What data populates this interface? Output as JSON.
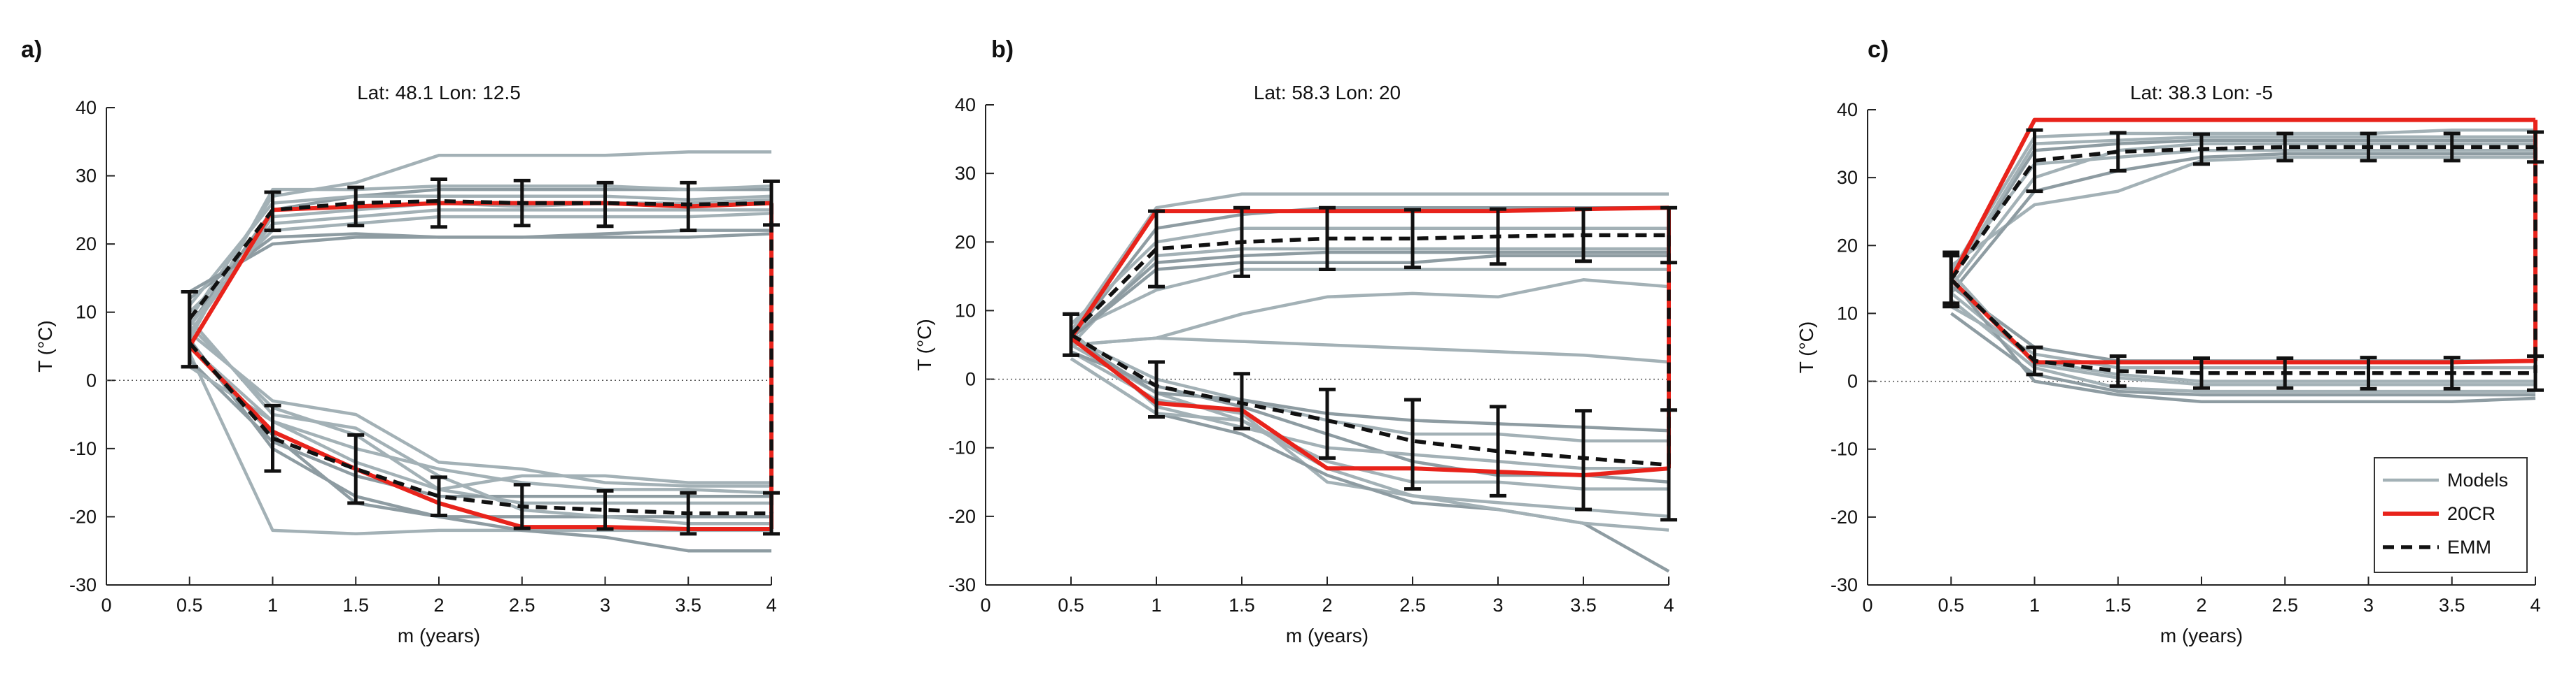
{
  "figure": {
    "description_free": true
  },
  "legend": {
    "entries": [
      {
        "label": "Models",
        "color": "#a3b1b6",
        "style": "solid"
      },
      {
        "label": "20CR",
        "color": "#e8231b",
        "style": "solid"
      },
      {
        "label": "EMM",
        "color": "#111111",
        "style": "dashed"
      }
    ]
  },
  "colors": {
    "models": "#a3b1b6",
    "models_dark": "#8e9ca2",
    "reanalysis": "#e8231b",
    "emm": "#111111"
  },
  "chart_data": [
    {
      "type": "line",
      "panel": "a)",
      "title": "Lat: 48.1  Lon: 12.5",
      "xlabel": "m (years)",
      "ylabel": "T (°C)",
      "x": [
        0.5,
        1,
        1.5,
        2,
        2.5,
        3,
        3.5,
        4
      ],
      "xticks": [
        "0",
        "0.5",
        "1",
        "1.5",
        "2",
        "2.5",
        "3",
        "3.5",
        "4"
      ],
      "yticks": [
        "-30",
        "-20",
        "-10",
        "0",
        "10",
        "20",
        "30",
        "40"
      ],
      "xlim": [
        0,
        4
      ],
      "ylim": [
        -30,
        40
      ],
      "zero_line": true,
      "series": [
        {
          "name": "20CR max",
          "values": [
            5,
            25,
            25.5,
            26,
            26,
            26,
            25.5,
            26
          ]
        },
        {
          "name": "20CR min",
          "values": [
            5,
            -7.5,
            -13,
            -18,
            -21.5,
            -21.5,
            -21.8,
            -21.8
          ]
        },
        {
          "name": "EMM max",
          "values": [
            9,
            25,
            26,
            26.3,
            26,
            26,
            25.8,
            26
          ]
        },
        {
          "name": "EMM min",
          "values": [
            5.5,
            -8.5,
            -13,
            -17,
            -18.5,
            -19,
            -19.5,
            -19.5
          ]
        }
      ],
      "error_bars": {
        "max": {
          "means": [
            7.5,
            24.8,
            25.5,
            26,
            26,
            25.8,
            25.5,
            26
          ],
          "halfwidths": [
            5.5,
            2.8,
            2.8,
            3.5,
            3.3,
            3.2,
            3.5,
            3.2
          ]
        },
        "min": {
          "means": [
            7.5,
            -8.5,
            -13,
            -17,
            -18.5,
            -19,
            -19.5,
            -19.5
          ],
          "halfwidths": [
            5.5,
            4.8,
            5,
            2.8,
            3.2,
            2.8,
            3,
            3
          ]
        }
      },
      "models_max": [
        [
          9,
          27,
          29,
          33,
          33,
          33,
          33.5,
          33.5
        ],
        [
          8,
          25,
          27,
          28,
          28,
          28,
          28,
          28
        ],
        [
          7,
          24,
          25,
          26,
          25.5,
          26,
          26,
          26.5
        ],
        [
          10,
          22,
          23,
          24,
          24,
          24,
          24,
          24.5
        ],
        [
          12,
          21,
          21.5,
          21,
          21,
          21.5,
          22,
          22
        ],
        [
          6,
          28,
          28,
          28.5,
          28.5,
          28.5,
          28,
          28.5
        ],
        [
          11,
          26,
          27,
          27,
          27,
          27,
          26.5,
          27
        ],
        [
          13,
          20,
          21,
          21,
          21,
          21,
          21,
          21.5
        ],
        [
          8,
          23,
          24,
          25,
          25,
          25,
          25,
          25
        ]
      ],
      "models_min": [
        [
          4,
          -22,
          -22.5,
          -22,
          -22,
          -22,
          -22,
          -22
        ],
        [
          6,
          -10,
          -17,
          -20,
          -22,
          -23,
          -25,
          -25
        ],
        [
          5,
          -6,
          -10,
          -13,
          -15,
          -16,
          -16,
          -16.5
        ],
        [
          8,
          -4,
          -8,
          -16,
          -18,
          -18,
          -18,
          -18
        ],
        [
          3,
          -9,
          -14,
          -17,
          -17,
          -17,
          -17,
          -17
        ],
        [
          2,
          -6,
          -12,
          -16,
          -14,
          -14,
          -15,
          -15
        ],
        [
          7,
          -3,
          -5,
          -12,
          -13,
          -15,
          -15.5,
          -15.5
        ],
        [
          5,
          -8,
          -18,
          -20,
          -20,
          -20,
          -20,
          -20
        ],
        [
          9,
          -5,
          -7,
          -14,
          -19,
          -20,
          -21,
          -21
        ]
      ]
    },
    {
      "type": "line",
      "panel": "b)",
      "title": "Lat: 58.3  Lon: 20",
      "xlabel": "m (years)",
      "ylabel": "T (°C)",
      "x": [
        0.5,
        1,
        1.5,
        2,
        2.5,
        3,
        3.5,
        4
      ],
      "xticks": [
        "0",
        "0.5",
        "1",
        "1.5",
        "2",
        "2.5",
        "3",
        "3.5",
        "4"
      ],
      "yticks": [
        "-30",
        "-20",
        "-10",
        "0",
        "10",
        "20",
        "30",
        "40"
      ],
      "xlim": [
        0,
        4
      ],
      "ylim": [
        -30,
        40
      ],
      "zero_line": true,
      "series": [
        {
          "name": "20CR max",
          "values": [
            6,
            24.5,
            24.5,
            24.5,
            24.5,
            24.5,
            24.8,
            25
          ]
        },
        {
          "name": "20CR min",
          "values": [
            6,
            -3.5,
            -4.5,
            -13,
            -13,
            -13.5,
            -14,
            -13
          ]
        },
        {
          "name": "EMM max",
          "values": [
            6.5,
            19,
            20,
            20.5,
            20.5,
            20.8,
            21,
            21
          ]
        },
        {
          "name": "EMM min",
          "values": [
            6.5,
            -1,
            -3.5,
            -6,
            -9,
            -10.5,
            -11.5,
            -12.5
          ]
        }
      ],
      "error_bars": {
        "max": {
          "means": [
            6.5,
            19,
            20,
            20.5,
            20.5,
            20.8,
            21,
            21
          ],
          "halfwidths": [
            3,
            5.5,
            5,
            4.5,
            4.2,
            4,
            3.8,
            4
          ]
        },
        "min": {
          "means": [
            6.5,
            -1.5,
            -3.2,
            -6.5,
            -9.5,
            -10.5,
            -11.8,
            -12.5
          ],
          "halfwidths": [
            3,
            4,
            4,
            5,
            6.5,
            6.5,
            7.2,
            8
          ]
        }
      },
      "models_max": [
        [
          7,
          25,
          27,
          27,
          27,
          27,
          27,
          27
        ],
        [
          6,
          22,
          24,
          25,
          25,
          25,
          25,
          25
        ],
        [
          8,
          20,
          22,
          22,
          22,
          22,
          22,
          22
        ],
        [
          5,
          18,
          19,
          19,
          19,
          19,
          19,
          19
        ],
        [
          6,
          17,
          18,
          18.5,
          18.5,
          18.5,
          18.5,
          18.5
        ],
        [
          7,
          13,
          16,
          16,
          16,
          16,
          16,
          16
        ],
        [
          5,
          6,
          9.5,
          12,
          12.5,
          12,
          14.5,
          13.5
        ],
        [
          6,
          16,
          17,
          17,
          17,
          18,
          18,
          18
        ]
      ],
      "models_min": [
        [
          5,
          6,
          5.5,
          5,
          4.5,
          4,
          3.5,
          2.5
        ],
        [
          4,
          -3,
          -5,
          -15,
          -17,
          -18,
          -19,
          -20
        ],
        [
          3,
          -5,
          -8,
          -14,
          -18,
          -19,
          -21,
          -28
        ],
        [
          6,
          0,
          -3,
          -6,
          -8,
          -8,
          -9,
          -9
        ],
        [
          5,
          -2,
          -6,
          -12,
          -15,
          -15,
          -16,
          -16
        ],
        [
          4,
          -1,
          -4,
          -8,
          -12,
          -14,
          -14,
          -15
        ],
        [
          7,
          -4,
          -7,
          -10,
          -11,
          -12,
          -13,
          -13
        ],
        [
          3,
          -5,
          -6,
          -13,
          -17,
          -19,
          -21,
          -22
        ],
        [
          6,
          -2,
          -3,
          -5,
          -6,
          -6.5,
          -7,
          -7.5
        ]
      ]
    },
    {
      "type": "line",
      "panel": "c)",
      "title": "Lat: 38.3  Lon: -5",
      "xlabel": "m (years)",
      "ylabel": "T (°C)",
      "x": [
        0.5,
        1,
        1.5,
        2,
        2.5,
        3,
        3.5,
        4
      ],
      "xticks": [
        "0",
        "0.5",
        "1",
        "1.5",
        "2",
        "2.5",
        "3",
        "3.5",
        "4"
      ],
      "yticks": [
        "-30",
        "-20",
        "-10",
        "0",
        "10",
        "20",
        "30",
        "40"
      ],
      "xlim": [
        0,
        4
      ],
      "ylim": [
        -30,
        40
      ],
      "zero_line": true,
      "series": [
        {
          "name": "20CR max",
          "values": [
            15,
            38.5,
            38.5,
            38.5,
            38.5,
            38.5,
            38.5,
            38.5
          ]
        },
        {
          "name": "20CR min",
          "values": [
            15,
            2.8,
            2.8,
            2.8,
            2.8,
            2.8,
            2.8,
            3
          ]
        },
        {
          "name": "EMM max",
          "values": [
            15,
            32.5,
            33.8,
            34.2,
            34.5,
            34.5,
            34.5,
            34.5
          ]
        },
        {
          "name": "EMM min",
          "values": [
            15,
            3,
            1.5,
            1.2,
            1.2,
            1.2,
            1.2,
            1.2
          ]
        }
      ],
      "error_bars": {
        "max": {
          "means": [
            15,
            32.5,
            33.8,
            34.2,
            34.5,
            34.5,
            34.5,
            34.5
          ],
          "halfwidths": [
            3.5,
            4.5,
            2.8,
            2.2,
            2,
            2,
            2,
            2.2
          ]
        },
        "min": {
          "means": [
            15,
            3,
            1.5,
            1.2,
            1.2,
            1.2,
            1.2,
            1.2
          ],
          "halfwidths": [
            4,
            2,
            2.2,
            2.2,
            2.2,
            2.3,
            2.3,
            2.5
          ]
        }
      },
      "models_max": [
        [
          16,
          36,
          36.5,
          36.5,
          36.5,
          36.5,
          37,
          37
        ],
        [
          15,
          34,
          35,
          35.5,
          35.5,
          35.5,
          35.5,
          35.5
        ],
        [
          14,
          30,
          34,
          35,
          35,
          35,
          35,
          35
        ],
        [
          17,
          26,
          28,
          32.5,
          33,
          33,
          33,
          33
        ],
        [
          13,
          28,
          31,
          33,
          33.5,
          33.5,
          33.5,
          33.5
        ],
        [
          16,
          32,
          33,
          34,
          34,
          34,
          34,
          34
        ],
        [
          15,
          35,
          35.5,
          36,
          36,
          36,
          36,
          36
        ]
      ],
      "models_min": [
        [
          14,
          5,
          3,
          3,
          3,
          3,
          3,
          3
        ],
        [
          13,
          3,
          1,
          0,
          0,
          0,
          0,
          0
        ],
        [
          12,
          2,
          -1,
          -1.5,
          -1.5,
          -1.5,
          -1.5,
          -1.5
        ],
        [
          15,
          0,
          -2,
          -3,
          -3,
          -3,
          -3,
          -2.5
        ],
        [
          11,
          4,
          2,
          2,
          2,
          2,
          2,
          2
        ],
        [
          16,
          2.5,
          0.5,
          -0.5,
          -0.5,
          -0.5,
          -0.5,
          -0.5
        ],
        [
          10,
          1,
          -1.5,
          -2,
          -2,
          -2,
          -2,
          -2
        ]
      ],
      "has_legend": true
    }
  ]
}
